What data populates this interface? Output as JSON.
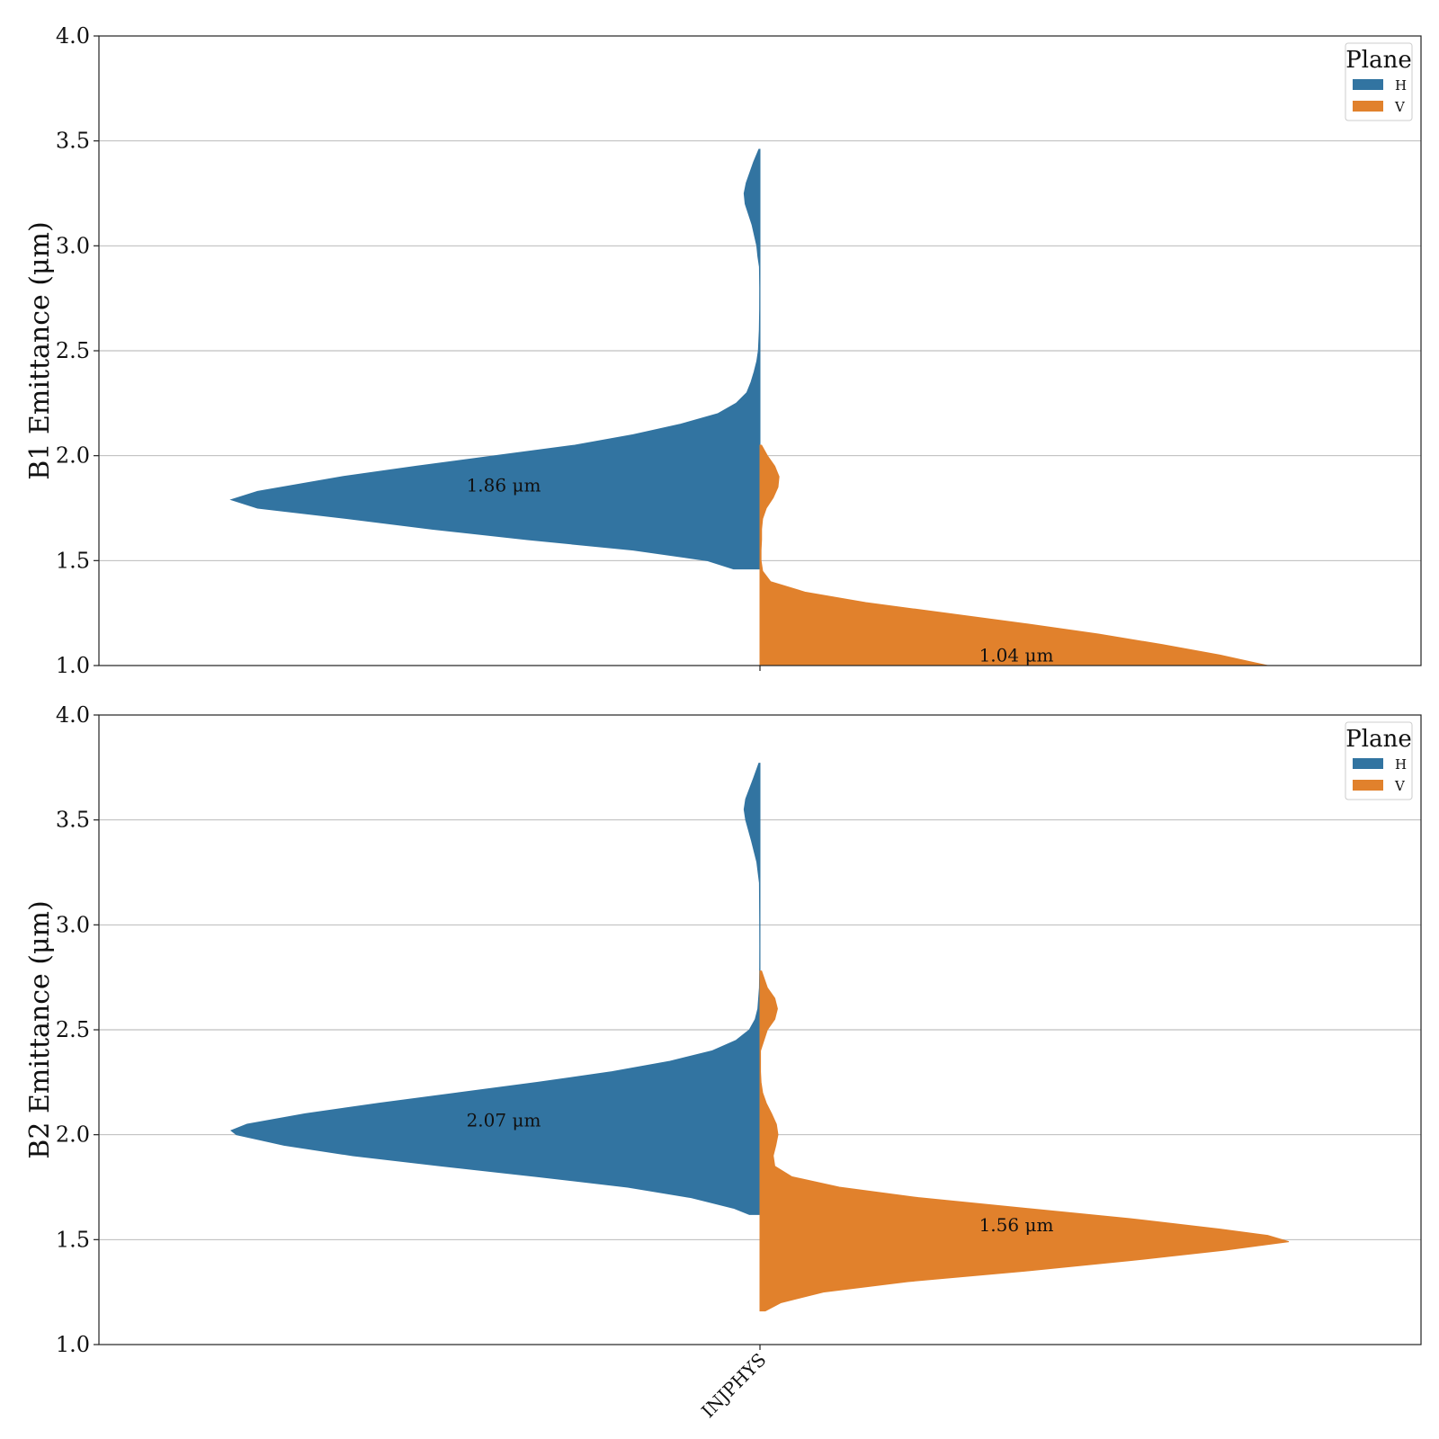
{
  "chart_data": [
    {
      "type": "violin",
      "ylabel": "B1 Emittance (μm)",
      "ylim": [
        1.0,
        4.0
      ],
      "yticks": [
        "1.0",
        "1.5",
        "2.0",
        "2.5",
        "3.0",
        "3.5",
        "4.0"
      ],
      "grid": true,
      "categories": [
        "INJPHYS"
      ],
      "legend": {
        "title": "Plane",
        "position": "top-right",
        "entries": [
          "H",
          "V"
        ]
      },
      "series": [
        {
          "name": "H",
          "color": "#3274a1",
          "side": "left",
          "median": 1.86,
          "median_label": "1.86 μm",
          "median_label_y": 1.86,
          "density": [
            [
              1.46,
              0.05
            ],
            [
              1.5,
              0.1
            ],
            [
              1.55,
              0.24
            ],
            [
              1.6,
              0.44
            ],
            [
              1.65,
              0.62
            ],
            [
              1.7,
              0.78
            ],
            [
              1.75,
              0.95
            ],
            [
              1.79,
              1.0
            ],
            [
              1.83,
              0.95
            ],
            [
              1.9,
              0.79
            ],
            [
              1.95,
              0.65
            ],
            [
              2.0,
              0.5
            ],
            [
              2.05,
              0.35
            ],
            [
              2.1,
              0.24
            ],
            [
              2.15,
              0.15
            ],
            [
              2.2,
              0.08
            ],
            [
              2.25,
              0.045
            ],
            [
              2.3,
              0.025
            ],
            [
              2.35,
              0.017
            ],
            [
              2.4,
              0.011
            ],
            [
              2.45,
              0.006
            ],
            [
              2.5,
              0.003
            ],
            [
              2.6,
              0.0012
            ],
            [
              2.7,
              0.0006
            ],
            [
              2.8,
              0.0005
            ],
            [
              2.9,
              0.001
            ],
            [
              2.95,
              0.004
            ],
            [
              3.0,
              0.006
            ],
            [
              3.1,
              0.015
            ],
            [
              3.2,
              0.028
            ],
            [
              3.25,
              0.03
            ],
            [
              3.3,
              0.026
            ],
            [
              3.4,
              0.012
            ],
            [
              3.46,
              0.002
            ]
          ]
        },
        {
          "name": "V",
          "color": "#e1812c",
          "side": "right",
          "median": 1.04,
          "median_label": "1.04 μm",
          "median_label_y": 1.05,
          "density": [
            [
              1.0,
              0.96
            ],
            [
              1.05,
              0.87
            ],
            [
              1.1,
              0.76
            ],
            [
              1.15,
              0.64
            ],
            [
              1.2,
              0.5
            ],
            [
              1.25,
              0.35
            ],
            [
              1.3,
              0.2
            ],
            [
              1.35,
              0.085
            ],
            [
              1.4,
              0.02
            ],
            [
              1.45,
              0.005
            ],
            [
              1.5,
              0.002
            ],
            [
              1.55,
              0.002
            ],
            [
              1.6,
              0.003
            ],
            [
              1.65,
              0.003
            ],
            [
              1.7,
              0.005
            ],
            [
              1.75,
              0.012
            ],
            [
              1.8,
              0.025
            ],
            [
              1.85,
              0.034
            ],
            [
              1.9,
              0.036
            ],
            [
              1.95,
              0.028
            ],
            [
              2.0,
              0.014
            ],
            [
              2.05,
              0.003
            ]
          ]
        }
      ]
    },
    {
      "type": "violin",
      "ylabel": "B2 Emittance (μm)",
      "ylim": [
        1.0,
        4.0
      ],
      "yticks": [
        "1.0",
        "1.5",
        "2.0",
        "2.5",
        "3.0",
        "3.5",
        "4.0"
      ],
      "grid": true,
      "categories": [
        "INJPHYS"
      ],
      "legend": {
        "title": "Plane",
        "position": "top-right",
        "entries": [
          "H",
          "V"
        ]
      },
      "series": [
        {
          "name": "H",
          "color": "#3274a1",
          "side": "left",
          "median": 2.07,
          "median_label": "2.07 μm",
          "median_label_y": 2.07,
          "density": [
            [
              1.62,
              0.02
            ],
            [
              1.65,
              0.05
            ],
            [
              1.7,
              0.13
            ],
            [
              1.75,
              0.25
            ],
            [
              1.8,
              0.42
            ],
            [
              1.85,
              0.6
            ],
            [
              1.9,
              0.77
            ],
            [
              1.95,
              0.9
            ],
            [
              2.0,
              0.99
            ],
            [
              2.02,
              1.0
            ],
            [
              2.05,
              0.97
            ],
            [
              2.1,
              0.86
            ],
            [
              2.15,
              0.72
            ],
            [
              2.2,
              0.57
            ],
            [
              2.25,
              0.42
            ],
            [
              2.3,
              0.28
            ],
            [
              2.35,
              0.17
            ],
            [
              2.4,
              0.09
            ],
            [
              2.45,
              0.045
            ],
            [
              2.5,
              0.02
            ],
            [
              2.55,
              0.009
            ],
            [
              2.6,
              0.004
            ],
            [
              2.7,
              0.001
            ],
            [
              2.8,
              0.0005
            ],
            [
              2.9,
              0.0004
            ],
            [
              3.0,
              0.0005
            ],
            [
              3.2,
              0.001
            ],
            [
              3.3,
              0.006
            ],
            [
              3.4,
              0.016
            ],
            [
              3.5,
              0.027
            ],
            [
              3.55,
              0.03
            ],
            [
              3.6,
              0.027
            ],
            [
              3.7,
              0.012
            ],
            [
              3.77,
              0.002
            ]
          ]
        },
        {
          "name": "V",
          "color": "#e1812c",
          "side": "right",
          "median": 1.56,
          "median_label": "1.56 μm",
          "median_label_y": 1.57,
          "density": [
            [
              1.16,
              0.01
            ],
            [
              1.2,
              0.04
            ],
            [
              1.25,
              0.12
            ],
            [
              1.3,
              0.28
            ],
            [
              1.35,
              0.5
            ],
            [
              1.4,
              0.7
            ],
            [
              1.45,
              0.88
            ],
            [
              1.49,
              1.0
            ],
            [
              1.52,
              0.96
            ],
            [
              1.55,
              0.87
            ],
            [
              1.6,
              0.7
            ],
            [
              1.65,
              0.5
            ],
            [
              1.7,
              0.3
            ],
            [
              1.75,
              0.15
            ],
            [
              1.8,
              0.06
            ],
            [
              1.85,
              0.028
            ],
            [
              1.9,
              0.025
            ],
            [
              1.95,
              0.03
            ],
            [
              2.0,
              0.034
            ],
            [
              2.05,
              0.031
            ],
            [
              2.1,
              0.022
            ],
            [
              2.15,
              0.012
            ],
            [
              2.2,
              0.005
            ],
            [
              2.25,
              0.002
            ],
            [
              2.3,
              0.001
            ],
            [
              2.4,
              0.001
            ],
            [
              2.5,
              0.014
            ],
            [
              2.55,
              0.028
            ],
            [
              2.6,
              0.033
            ],
            [
              2.65,
              0.028
            ],
            [
              2.7,
              0.014
            ],
            [
              2.78,
              0.003
            ]
          ]
        }
      ]
    }
  ]
}
